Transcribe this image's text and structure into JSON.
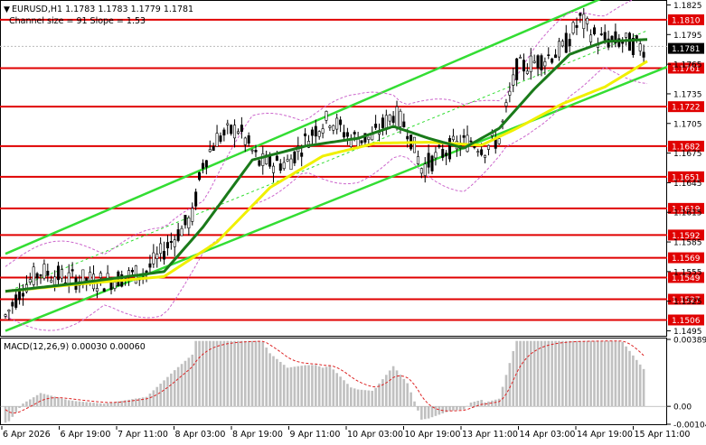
{
  "header": {
    "symbol_line": "EURUSD,H1  1.1783 1.1783 1.1779 1.1781",
    "channel_line": "Channel size = 91 Slope = 1.53"
  },
  "price_axis": {
    "ticks": [
      "1.1825",
      "1.1795",
      "1.1765",
      "1.1735",
      "1.1705",
      "1.1675",
      "1.1645",
      "1.1615",
      "1.1585",
      "1.1555",
      "1.1525",
      "1.1495"
    ],
    "current_price": "1.1781"
  },
  "levels": [
    {
      "label": "1.1810",
      "value": 1.181
    },
    {
      "label": "1.1761",
      "value": 1.1761
    },
    {
      "label": "1.1722",
      "value": 1.1722
    },
    {
      "label": "1.1682",
      "value": 1.1682
    },
    {
      "label": "1.1651",
      "value": 1.1651
    },
    {
      "label": "1.1619",
      "value": 1.1619
    },
    {
      "label": "1.1592",
      "value": 1.1592
    },
    {
      "label": "1.1569",
      "value": 1.1569
    },
    {
      "label": "1.1549",
      "value": 1.1549
    },
    {
      "label": "1.1527",
      "value": 1.1527
    },
    {
      "label": "1.1506",
      "value": 1.1506
    }
  ],
  "macd": {
    "label": "MACD(12,26,9) 0.00030 0.00060",
    "ticks": [
      "0.00389",
      "0.00",
      "-0.00104"
    ]
  },
  "time_axis": [
    "6 Apr 2026",
    "6 Apr 19:00",
    "7 Apr 11:00",
    "8 Apr 03:00",
    "8 Apr 19:00",
    "9 Apr 11:00",
    "10 Apr 03:00",
    "10 Apr 19:00",
    "13 Apr 11:00",
    "14 Apr 03:00",
    "14 Apr 19:00",
    "15 Apr 11:00"
  ],
  "colors": {
    "level_line": "#e00000",
    "channel": "#33dd33",
    "ma_fast": "#1a7a1a",
    "ma_slow": "#f0f000",
    "envelope": "#cc66cc",
    "histogram": "#c0c0c0",
    "signal": "#dd2222",
    "candle": "#000000"
  },
  "chart_data": {
    "type": "candlestick",
    "ylim": [
      1.149,
      1.183
    ],
    "price_path": [
      [
        0,
        1.151
      ],
      [
        5,
        1.154
      ],
      [
        10,
        1.1555
      ],
      [
        18,
        1.1548
      ],
      [
        28,
        1.1545
      ],
      [
        40,
        1.1555
      ],
      [
        48,
        1.159
      ],
      [
        53,
        1.161
      ],
      [
        56,
        1.1665
      ],
      [
        60,
        1.169
      ],
      [
        66,
        1.17
      ],
      [
        72,
        1.1665
      ],
      [
        80,
        1.1665
      ],
      [
        88,
        1.17
      ],
      [
        92,
        1.171
      ],
      [
        98,
        1.169
      ],
      [
        104,
        1.169
      ],
      [
        110,
        1.1715
      ],
      [
        114,
        1.17
      ],
      [
        118,
        1.166
      ],
      [
        126,
        1.168
      ],
      [
        132,
        1.1688
      ],
      [
        136,
        1.168
      ],
      [
        140,
        1.169
      ],
      [
        145,
        1.176
      ],
      [
        152,
        1.177
      ],
      [
        158,
        1.178
      ],
      [
        163,
        1.181
      ],
      [
        168,
        1.179
      ],
      [
        175,
        1.1788
      ],
      [
        180,
        1.1783
      ],
      [
        182,
        1.1781
      ]
    ],
    "ma_fast_path": [
      [
        0,
        1.1535
      ],
      [
        20,
        1.1543
      ],
      [
        45,
        1.1555
      ],
      [
        56,
        1.16
      ],
      [
        70,
        1.1668
      ],
      [
        85,
        1.1682
      ],
      [
        100,
        1.169
      ],
      [
        110,
        1.1702
      ],
      [
        120,
        1.169
      ],
      [
        130,
        1.168
      ],
      [
        140,
        1.17
      ],
      [
        150,
        1.174
      ],
      [
        160,
        1.1775
      ],
      [
        170,
        1.1788
      ],
      [
        182,
        1.179
      ]
    ],
    "ma_slow_path": [
      [
        0,
        1.1535
      ],
      [
        20,
        1.1542
      ],
      [
        45,
        1.155
      ],
      [
        60,
        1.1585
      ],
      [
        75,
        1.164
      ],
      [
        90,
        1.1672
      ],
      [
        105,
        1.1685
      ],
      [
        120,
        1.1686
      ],
      [
        135,
        1.1683
      ],
      [
        145,
        1.17
      ],
      [
        158,
        1.1725
      ],
      [
        170,
        1.1742
      ],
      [
        182,
        1.1768
      ]
    ],
    "channel_lower_start": [
      0,
      1.1495
    ],
    "channel_lower_end": [
      182,
      1.1755
    ],
    "channel_upper_start": [
      0,
      1.1573
    ],
    "channel_upper_end": [
      170,
      1.1833
    ],
    "bars_total": 182
  }
}
